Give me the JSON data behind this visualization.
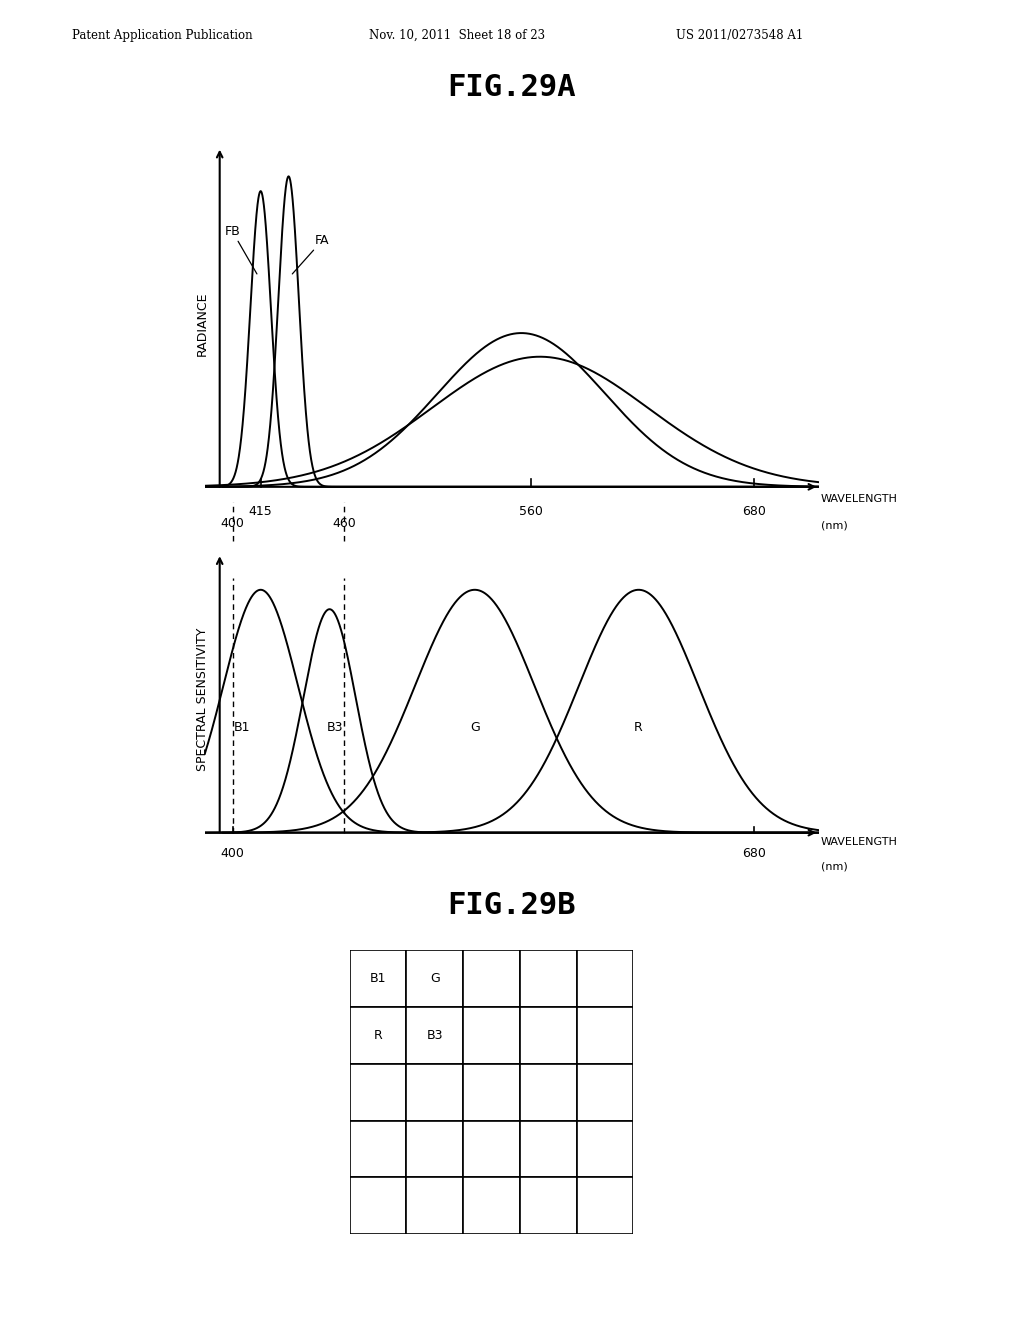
{
  "header_left": "Patent Application Publication",
  "header_mid": "Nov. 10, 2011  Sheet 18 of 23",
  "header_right": "US 2011/0273548 A1",
  "fig29a_title": "FIG.29A",
  "fig29b_title": "FIG.29B",
  "top_ylabel": "RADIANCE",
  "top_xlabel1": "WAVELENGTH",
  "top_xlabel2": "(nm)",
  "bot_ylabel": "SPECTRAL SENSITIVITY",
  "bot_xlabel1": "WAVELENGTH",
  "bot_xlabel2": "(nm)",
  "fb_label": "FB",
  "fa_label": "FA",
  "b1_label": "B1",
  "b3_label": "B3",
  "g_label": "G",
  "r_label": "R",
  "bg_color": "#ffffff",
  "line_color": "#000000",
  "grid_label_cells": [
    {
      "row": 0,
      "col": 0,
      "label": "B1"
    },
    {
      "row": 0,
      "col": 1,
      "label": "G"
    },
    {
      "row": 1,
      "col": 0,
      "label": "R"
    },
    {
      "row": 1,
      "col": 1,
      "label": "B3"
    }
  ]
}
